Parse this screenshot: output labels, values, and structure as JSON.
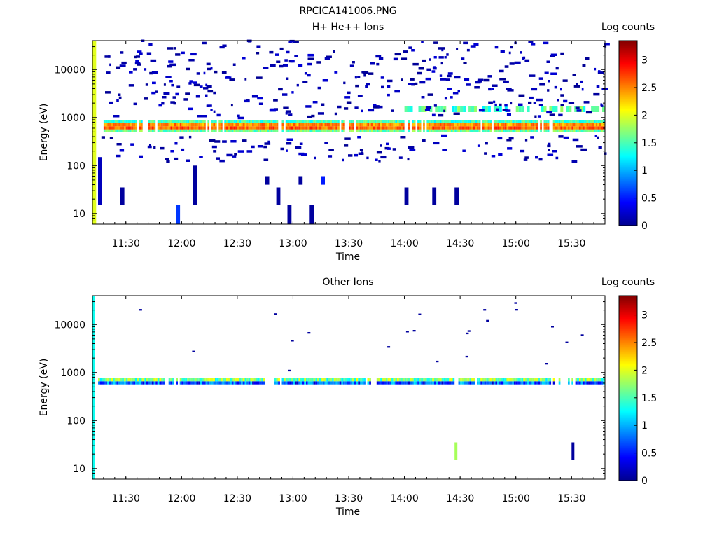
{
  "page_title": "RPCICA141006.PNG",
  "colorbar": {
    "title": "Log counts",
    "ticks": [
      "0",
      "0.5",
      "1",
      "1.5",
      "2",
      "2.5",
      "3"
    ],
    "range": [
      0,
      3.35
    ]
  },
  "chart_data": [
    {
      "type": "heatmap",
      "title": "H+ He++ Ions",
      "xlabel": "Time",
      "ylabel": "Energy (eV)",
      "y_scale": "log",
      "ylim": [
        6,
        40000
      ],
      "xlim": [
        "11:12",
        "15:48"
      ],
      "x_ticks": [
        "11:30",
        "12:00",
        "12:30",
        "13:00",
        "13:30",
        "14:00",
        "14:30",
        "15:00",
        "15:30"
      ],
      "y_ticks": [
        "10",
        "100",
        "1000",
        "10000"
      ],
      "y_tick_values": [
        10,
        100,
        1000,
        10000
      ],
      "time_columns": [
        "11:15",
        "11:21",
        "11:27",
        "11:33",
        "11:39",
        "11:45",
        "11:51",
        "11:57",
        "12:03",
        "12:09",
        "12:15",
        "12:21",
        "12:27",
        "12:33",
        "12:39",
        "12:45",
        "12:51",
        "12:57",
        "13:03",
        "13:09",
        "13:15",
        "13:21",
        "13:27",
        "13:33",
        "13:39",
        "13:45",
        "13:51",
        "13:57",
        "14:03",
        "14:09",
        "14:15",
        "14:21",
        "14:27",
        "14:33",
        "14:39",
        "14:45",
        "14:51",
        "14:57",
        "15:03",
        "15:09",
        "15:15",
        "15:21",
        "15:27",
        "15:33",
        "15:39",
        "15:45"
      ],
      "peak_band": {
        "energy_low": 520,
        "energy_high": 820,
        "peak_energy": 650,
        "peak_log_counts": 3.3
      },
      "secondary_band": {
        "energy_low": 1300,
        "energy_high": 1700,
        "log_counts": 1.8,
        "time_range": [
          "14:00",
          "15:48"
        ]
      },
      "low_energy_blobs": [
        {
          "time": "11:15",
          "energy_low": 15,
          "energy_high": 150,
          "log_counts": 0.2
        },
        {
          "time": "11:27",
          "energy_low": 15,
          "energy_high": 35,
          "log_counts": 0.1
        },
        {
          "time": "11:57",
          "energy_low": 6,
          "energy_high": 15,
          "log_counts": 0.6
        },
        {
          "time": "12:06",
          "energy_low": 15,
          "energy_high": 100,
          "log_counts": 0.1
        },
        {
          "time": "12:45",
          "energy_low": 40,
          "energy_high": 60,
          "log_counts": 0.1
        },
        {
          "time": "12:51",
          "energy_low": 15,
          "energy_high": 35,
          "log_counts": 0.1
        },
        {
          "time": "12:57",
          "energy_low": 6,
          "energy_high": 15,
          "log_counts": 0.1
        },
        {
          "time": "13:03",
          "energy_low": 40,
          "energy_high": 60,
          "log_counts": 0.1
        },
        {
          "time": "13:09",
          "energy_low": 6,
          "energy_high": 15,
          "log_counts": 0.1
        },
        {
          "time": "13:15",
          "energy_low": 40,
          "energy_high": 60,
          "log_counts": 0.5
        },
        {
          "time": "14:00",
          "energy_low": 15,
          "energy_high": 35,
          "log_counts": 0.1
        },
        {
          "time": "14:15",
          "energy_low": 15,
          "energy_high": 35,
          "log_counts": 0.1
        },
        {
          "time": "14:27",
          "energy_low": 15,
          "energy_high": 35,
          "log_counts": 0.1
        }
      ]
    },
    {
      "type": "heatmap",
      "title": "Other Ions",
      "xlabel": "Time",
      "ylabel": "Energy (eV)",
      "y_scale": "log",
      "ylim": [
        6,
        40000
      ],
      "xlim": [
        "11:12",
        "15:48"
      ],
      "x_ticks": [
        "11:30",
        "12:00",
        "12:30",
        "13:00",
        "13:30",
        "14:00",
        "14:30",
        "15:00",
        "15:30"
      ],
      "y_ticks": [
        "10",
        "100",
        "1000",
        "10000"
      ],
      "y_tick_values": [
        10,
        100,
        1000,
        10000
      ],
      "peak_band": {
        "energy_low": 540,
        "energy_high": 720,
        "peak_energy": 650,
        "peak_log_counts": 2.1
      },
      "left_column": {
        "time": "11:12",
        "energy_low": 6,
        "energy_high": 40000,
        "log_counts": 1.3
      },
      "features": [
        {
          "time": "14:27",
          "energy_low": 15,
          "energy_high": 35,
          "log_counts": 1.8
        },
        {
          "time": "15:30",
          "energy_low": 15,
          "energy_high": 35,
          "log_counts": 0.1
        }
      ]
    }
  ]
}
